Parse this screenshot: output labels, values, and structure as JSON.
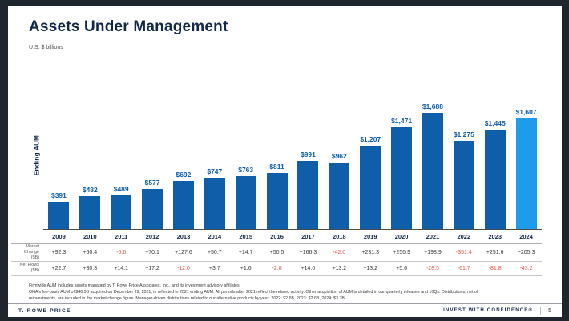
{
  "slide": {
    "title": "Assets Under Management",
    "subtitle": "U.S. $ billions",
    "y_axis_label": "Ending AUM"
  },
  "chart_data": {
    "type": "bar",
    "title": "Assets Under Management",
    "units": "U.S. $ billions",
    "ylabel": "Ending AUM",
    "categories": [
      "2009",
      "2010",
      "2011",
      "2012",
      "2013",
      "2014",
      "2015",
      "2016",
      "2017",
      "2018",
      "2019",
      "2020",
      "2021",
      "2022",
      "2023",
      "2024"
    ],
    "values": [
      391,
      482,
      489,
      577,
      692,
      747,
      763,
      811,
      991,
      962,
      1207,
      1471,
      1688,
      1275,
      1445,
      1607
    ],
    "bar_labels": [
      "$391",
      "$482",
      "$489",
      "$577",
      "$692",
      "$747",
      "$763",
      "$811",
      "$991",
      "$962",
      "$1,207",
      "$1,471",
      "$1,688",
      "$1,275",
      "$1,445",
      "$1,607"
    ],
    "series": [
      {
        "name": "Ending AUM ($B)",
        "values": [
          391,
          482,
          489,
          577,
          692,
          747,
          763,
          811,
          991,
          962,
          1207,
          1471,
          1688,
          1275,
          1445,
          1607
        ]
      },
      {
        "name": "Market Change ($B)",
        "values": [
          "+92.3",
          "+60.4",
          "-6.6",
          "+70.1",
          "+127.6",
          "+50.7",
          "+14.7",
          "+50.5",
          "+166.3",
          "-42.0",
          "+231.3",
          "+256.9",
          "+198.9",
          "-351.4",
          "+251.6",
          "+205.3"
        ]
      },
      {
        "name": "Net Flows ($B)",
        "values": [
          "+22.7",
          "+30.3",
          "+14.1",
          "+17.2",
          "-12.0",
          "+3.7",
          "+1.6",
          "-2.8",
          "+14.0",
          "+13.2",
          "+13.2",
          "+5.6",
          "-28.5",
          "-61.7",
          "-81.8",
          "-43.2"
        ]
      }
    ],
    "ylim": [
      0,
      2000
    ],
    "grid": false,
    "legend": false,
    "highlight_index": 15,
    "bar_color": "#0F5EA9",
    "highlight_color": "#1C9CEA",
    "label_color": "#0F5EA9",
    "negative_color": "#F0524A"
  },
  "table": {
    "market_change_label_lines": [
      "Market",
      "Change",
      "($B)"
    ],
    "net_flows_label_lines": [
      "Net Flows",
      "($B)"
    ]
  },
  "footnotes": [
    "Firmwide AUM includes assets managed by T. Rowe Price Associates, Inc., and its investment advisory affiliates.",
    "OHA's fee-basis AUM of $46.9B acquired on December 29, 2021, is reflected in 2021 ending AUM. All periods after 2021 reflect the related activity. Other acquisition of AUM is detailed in our quarterly releases and 10Qs. Distributions, net of",
    "reinvestments, are included in the market change figure. Manager-driven distributions related to our alternative products by year: 2022: $2.6B, 2023: $2.6B, 2024: $3.7B"
  ],
  "footer": {
    "brand": "T. ROWE PRICE",
    "tagline": "INVEST WITH CONFIDENCE®",
    "page": "5"
  }
}
